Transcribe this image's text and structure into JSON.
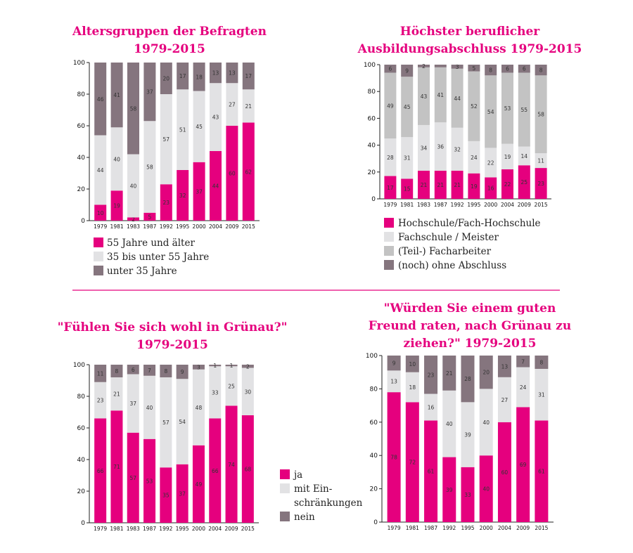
{
  "colors": {
    "pink": "#e5007e",
    "lightgray": "#e2e2e4",
    "midgray": "#c3c3c3",
    "darkgray": "#85757e",
    "divider": "#e5007e"
  },
  "chart_data": [
    {
      "type": "bar",
      "stacked": true,
      "title": [
        "Altersgruppen der Befragten",
        "1979-2015"
      ],
      "categories": [
        "1979",
        "1981",
        "1983",
        "1987",
        "1992",
        "1995",
        "2000",
        "2004",
        "2009",
        "2015"
      ],
      "ylim": [
        0,
        100
      ],
      "yticks": [
        0,
        20,
        40,
        60,
        80,
        100
      ],
      "series": [
        {
          "name": "55 Jahre und älter",
          "color": "#e5007e",
          "values": [
            10,
            19,
            2,
            5,
            23,
            32,
            37,
            44,
            60,
            62
          ]
        },
        {
          "name": "35 bis unter 55 Jahre",
          "color": "#e2e2e4",
          "values": [
            44,
            40,
            40,
            58,
            57,
            51,
            45,
            43,
            27,
            21
          ]
        },
        {
          "name": "unter 35 Jahre",
          "color": "#85757e",
          "values": [
            46,
            41,
            58,
            37,
            20,
            17,
            18,
            13,
            13,
            17
          ]
        }
      ],
      "labels": [
        [
          "10",
          "19",
          "2",
          "5",
          "23",
          "32",
          "37",
          "44",
          "60",
          "62"
        ],
        [
          "44",
          "40",
          "40",
          "58",
          "57",
          "51",
          "45",
          "43",
          "27",
          "21"
        ],
        [
          "46",
          "41",
          "58",
          "37",
          "20",
          "17",
          "18",
          "13",
          "13",
          "17"
        ]
      ],
      "legend": [
        "55 Jahre und älter",
        "35 bis unter 55 Jahre",
        "unter 35 Jahre"
      ]
    },
    {
      "type": "bar",
      "stacked": true,
      "title": [
        "Höchster beruflicher",
        "Ausbildungsabschluss 1979-2015"
      ],
      "categories": [
        "1979",
        "1981",
        "1983",
        "1987",
        "1992",
        "1995",
        "2000",
        "2004",
        "2009",
        "2015"
      ],
      "ylim": [
        0,
        100
      ],
      "yticks": [
        0,
        20,
        40,
        60,
        80,
        100
      ],
      "series": [
        {
          "name": "Hochschule/Fach-Hochschule",
          "color": "#e5007e",
          "values": [
            17,
            15,
            21,
            21,
            21,
            19,
            16,
            22,
            25,
            23
          ]
        },
        {
          "name": "Fachschule / Meister",
          "color": "#e2e2e4",
          "values": [
            28,
            31,
            34,
            36,
            32,
            24,
            22,
            19,
            14,
            11
          ]
        },
        {
          "name": "(Teil-) Facharbeiter",
          "color": "#c3c3c3",
          "values": [
            49,
            45,
            43,
            41,
            44,
            52,
            54,
            53,
            55,
            58
          ]
        },
        {
          "name": "(noch) ohne Abschluss",
          "color": "#85757e",
          "values": [
            6,
            9,
            2,
            2,
            3,
            5,
            8,
            6,
            6,
            8
          ]
        }
      ],
      "labels": [
        [
          "17",
          "15",
          "21",
          "21",
          "21",
          "19",
          "16",
          "22",
          "25",
          "23"
        ],
        [
          "28",
          "31",
          "34",
          "36",
          "32",
          "24",
          "22",
          "19",
          "14",
          "11"
        ],
        [
          "49",
          "45",
          "43",
          "41",
          "44",
          "52",
          "54",
          "53",
          "55",
          "58"
        ],
        [
          "6",
          "9",
          "2",
          "",
          "3",
          "5",
          "8",
          "6",
          "6",
          "8"
        ]
      ],
      "legend": [
        "Hochschule/Fach-Hochschule",
        "Fachschule / Meister",
        "(Teil-) Facharbeiter",
        "(noch) ohne Abschluss"
      ]
    },
    {
      "type": "bar",
      "stacked": true,
      "title": [
        "\"Fühlen Sie sich wohl in Grünau?\"",
        "1979-2015"
      ],
      "categories": [
        "1979",
        "1981",
        "1983",
        "1987",
        "1992",
        "1995",
        "2000",
        "2004",
        "2009",
        "2015"
      ],
      "ylim": [
        0,
        100
      ],
      "yticks": [
        0,
        20,
        40,
        60,
        80,
        100
      ],
      "series": [
        {
          "name": "ja",
          "color": "#e5007e",
          "values": [
            66,
            71,
            57,
            53,
            35,
            37,
            49,
            66,
            74,
            68
          ]
        },
        {
          "name": "mit Einschränkungen",
          "color": "#e2e2e4",
          "values": [
            23,
            21,
            37,
            40,
            57,
            54,
            48,
            33,
            25,
            30
          ]
        },
        {
          "name": "nein",
          "color": "#85757e",
          "values": [
            11,
            8,
            6,
            7,
            8,
            9,
            3,
            1,
            1,
            2
          ]
        }
      ],
      "labels": [
        [
          "66",
          "71",
          "57",
          "53",
          "35",
          "37",
          "49",
          "66",
          "74",
          "68"
        ],
        [
          "23",
          "21",
          "37",
          "40",
          "57",
          "54",
          "48",
          "33",
          "25",
          "30"
        ],
        [
          "11",
          "8",
          "6",
          "7",
          "8",
          "9",
          "3",
          "1",
          "1",
          "2"
        ]
      ],
      "legend": [
        "ja",
        "mit Ein-",
        "schränkungen",
        "nein"
      ]
    },
    {
      "type": "bar",
      "stacked": true,
      "title": [
        "\"Würden Sie einem guten",
        "Freund raten, nach Grünau zu",
        "ziehen?\" 1979-2015"
      ],
      "categories": [
        "1979",
        "1981",
        "1987",
        "1992",
        "1995",
        "2000",
        "2004",
        "2009",
        "2015"
      ],
      "ylim": [
        0,
        100
      ],
      "yticks": [
        0,
        20,
        40,
        60,
        80,
        100
      ],
      "series": [
        {
          "name": "ja",
          "color": "#e5007e",
          "values": [
            78,
            72,
            61,
            39,
            33,
            40,
            60,
            69,
            61
          ]
        },
        {
          "name": "mit Einschränkungen",
          "color": "#e2e2e4",
          "values": [
            13,
            18,
            16,
            40,
            39,
            40,
            27,
            24,
            31
          ]
        },
        {
          "name": "nein",
          "color": "#85757e",
          "values": [
            9,
            10,
            23,
            21,
            28,
            20,
            13,
            7,
            8
          ]
        }
      ],
      "labels": [
        [
          "78",
          "72",
          "61",
          "39",
          "33",
          "40",
          "60",
          "69",
          "61"
        ],
        [
          "13",
          "18",
          "16",
          "40",
          "39",
          "40",
          "27",
          "24",
          "31"
        ],
        [
          "9",
          "10",
          "23",
          "21",
          "28",
          "20",
          "13",
          "7",
          "8"
        ]
      ]
    }
  ]
}
